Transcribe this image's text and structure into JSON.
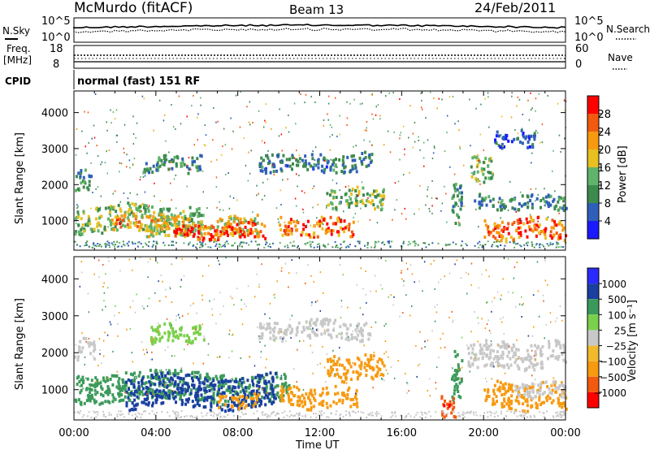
{
  "header": {
    "station": "McMurdo (fitACF)",
    "beam": "Beam 13",
    "date": "24/Feb/2011"
  },
  "noise_panel": {
    "left_label": "N.Sky",
    "right_label": "N.Search",
    "left_ticks": [
      "10^5",
      "10^0"
    ],
    "right_ticks": [
      "10^5",
      "10^0"
    ]
  },
  "freq_panel": {
    "left_label_1": "Freq.",
    "left_label_2": "[MHz]",
    "left_ticks": [
      "18",
      "8"
    ],
    "right_label": "Nave",
    "right_ticks": [
      "60",
      "0"
    ]
  },
  "cpid": {
    "label": "CPID",
    "text": "normal (fast) 151 RF"
  },
  "colors": {
    "power_scale": [
      "#1a1aff",
      "#2f5fb8",
      "#3d8a4e",
      "#5fb36a",
      "#e8c020",
      "#f79a10",
      "#f25a10",
      "#ff0000"
    ],
    "velocity_scale": [
      "#ff0000",
      "#f25a10",
      "#f79a10",
      "#f2b92b",
      "#c8c8c8",
      "#7bd04b",
      "#3b9a5b",
      "#1a3fa0",
      "#2a2aff"
    ]
  },
  "chart_data": [
    {
      "type": "heatmap",
      "title": "Power",
      "ylabel": "Slant Range [km]",
      "xlabel": "Time UT",
      "x_ticks": [
        "00:00",
        "04:00",
        "08:00",
        "12:00",
        "16:00",
        "20:00",
        "00:00"
      ],
      "y_ticks": [
        "1000",
        "2000",
        "3000",
        "4000"
      ],
      "ylim": [
        180,
        4600
      ],
      "xlim_hours": [
        0,
        24
      ],
      "colorbar": {
        "label": "Power [dB]",
        "ticks": [
          "4",
          "8",
          "12",
          "16",
          "20",
          "24",
          "28"
        ],
        "range": [
          0,
          32
        ]
      },
      "blobs": [
        {
          "t0": 0.0,
          "t1": 0.9,
          "r0": 1900,
          "r1": 2450,
          "v": 10
        },
        {
          "t0": 0.0,
          "t1": 6.3,
          "r0": 700,
          "r1": 1450,
          "v": 14
        },
        {
          "t0": 1.8,
          "t1": 4.5,
          "r0": 800,
          "r1": 1200,
          "v": 22
        },
        {
          "t0": 3.5,
          "t1": 9.0,
          "r0": 560,
          "r1": 1150,
          "v": 18
        },
        {
          "t0": 4.8,
          "t1": 9.3,
          "r0": 520,
          "r1": 950,
          "v": 28
        },
        {
          "t0": 10.0,
          "t1": 13.6,
          "r0": 580,
          "r1": 1100,
          "v": 25
        },
        {
          "t0": 12.3,
          "t1": 15.1,
          "r0": 1400,
          "r1": 1950,
          "v": 13
        },
        {
          "t0": 3.3,
          "t1": 6.2,
          "r0": 2400,
          "r1": 2850,
          "v": 9
        },
        {
          "t0": 9.0,
          "t1": 14.5,
          "r0": 2400,
          "r1": 2900,
          "v": 8
        },
        {
          "t0": 18.4,
          "t1": 18.9,
          "r0": 800,
          "r1": 2100,
          "v": 11
        },
        {
          "t0": 19.3,
          "t1": 20.4,
          "r0": 2100,
          "r1": 2800,
          "v": 14
        },
        {
          "t0": 19.5,
          "t1": 24.0,
          "r0": 1350,
          "r1": 1750,
          "v": 9
        },
        {
          "t0": 20.0,
          "t1": 24.0,
          "r0": 520,
          "r1": 1100,
          "v": 26
        },
        {
          "t0": 20.5,
          "t1": 22.5,
          "r0": 3100,
          "r1": 3550,
          "v": 6
        }
      ]
    },
    {
      "type": "heatmap",
      "title": "Velocity",
      "ylabel": "Slant Range [km]",
      "xlabel": "Time UT",
      "x_ticks": [
        "00:00",
        "04:00",
        "08:00",
        "12:00",
        "16:00",
        "20:00",
        "00:00"
      ],
      "y_ticks": [
        "1000",
        "2000",
        "3000",
        "4000"
      ],
      "ylim": [
        180,
        4600
      ],
      "xlim_hours": [
        0,
        24
      ],
      "colorbar": {
        "label": "Velocity [m s⁻¹]",
        "ticks": [
          "1000",
          "500",
          "100",
          "25",
          "−25",
          "−100",
          "−500",
          "−1000"
        ]
      },
      "blobs": [
        {
          "t0": 0.0,
          "t1": 1.0,
          "r0": 1900,
          "r1": 2400,
          "v": 0
        },
        {
          "t0": 0.0,
          "t1": 10.5,
          "r0": 700,
          "r1": 1500,
          "v": 300
        },
        {
          "t0": 2.5,
          "t1": 9.8,
          "r0": 550,
          "r1": 1400,
          "v": 700
        },
        {
          "t0": 7.0,
          "t1": 9.0,
          "r0": 550,
          "r1": 900,
          "v": -200
        },
        {
          "t0": 10.0,
          "t1": 13.8,
          "r0": 550,
          "r1": 1100,
          "v": -150
        },
        {
          "t0": 12.3,
          "t1": 15.1,
          "r0": 1300,
          "r1": 1950,
          "v": -130
        },
        {
          "t0": 9.0,
          "t1": 14.5,
          "r0": 2400,
          "r1": 2900,
          "v": 0
        },
        {
          "t0": 3.5,
          "t1": 6.3,
          "r0": 2300,
          "r1": 2800,
          "v": 40
        },
        {
          "t0": 18.4,
          "t1": 18.9,
          "r0": 800,
          "r1": 2100,
          "v": 200
        },
        {
          "t0": 19.2,
          "t1": 24.0,
          "r0": 1600,
          "r1": 2300,
          "v": 0
        },
        {
          "t0": 20.0,
          "t1": 24.0,
          "r0": 520,
          "r1": 1200,
          "v": -150
        },
        {
          "t0": 21.5,
          "t1": 24.0,
          "r0": 850,
          "r1": 1250,
          "v": 0
        },
        {
          "t0": 17.9,
          "t1": 18.6,
          "r0": 250,
          "r1": 850,
          "v": -900
        }
      ]
    }
  ]
}
